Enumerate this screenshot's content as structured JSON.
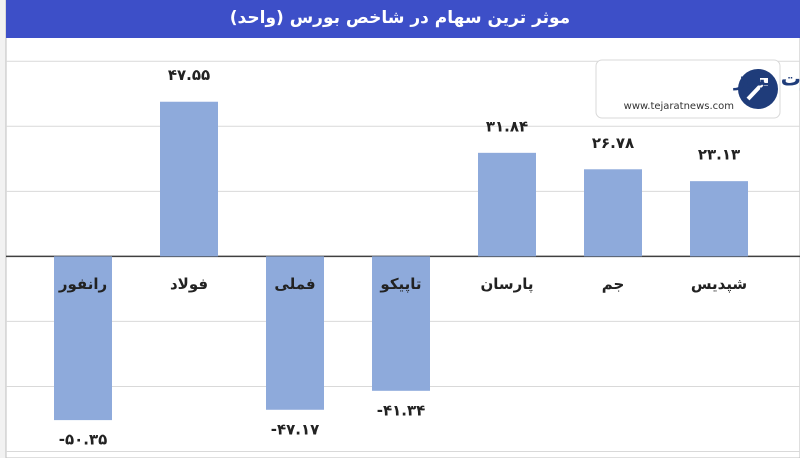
{
  "chart_data": {
    "type": "bar",
    "title": "موثر ترین سهام در شاخص بورس (واحد)",
    "categories": [
      "رانفور",
      "فولاد",
      "فملی",
      "تاپیکو",
      "پارسان",
      "جم",
      "شپدیس"
    ],
    "values": [
      -50.35,
      47.55,
      -47.17,
      -41.34,
      31.84,
      26.78,
      23.13
    ],
    "value_labels": [
      "-۵۰.۳۵",
      "۴۷.۵۵",
      "-۴۷.۱۷",
      "-۴۱.۳۴",
      "۳۱.۸۴",
      "۲۶.۷۸",
      "۲۳.۱۳"
    ],
    "color": "#8eaadb",
    "ylim": [
      -62,
      61
    ],
    "yticks": [
      -60,
      -40,
      -20,
      0,
      20,
      40,
      60
    ],
    "grid": true,
    "logo": {
      "name": "تجارت نیوز",
      "url": "www.tejaratnews.com"
    }
  }
}
